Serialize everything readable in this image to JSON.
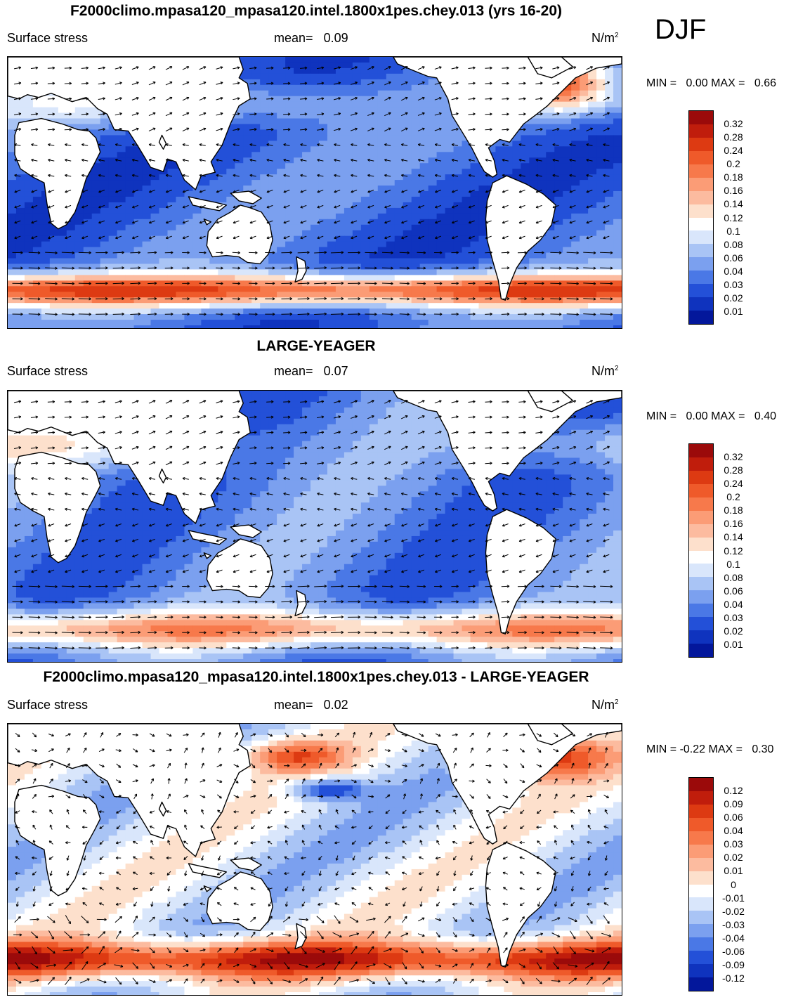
{
  "season": "DJF",
  "panels": [
    {
      "title": "F2000climo.mpasa120_mpasa120.intel.1800x1pes.chey.013 (yrs 16-20)",
      "variable": "Surface stress",
      "mean_label": "mean=",
      "mean_value": "0.09",
      "units_base": "N/m",
      "units_exp": "2",
      "min_label": "MIN =",
      "min_value": "0.00",
      "max_label": "MAX =",
      "max_value": "0.66",
      "colorbar": {
        "labels": [
          "0.32",
          "0.28",
          "0.24",
          "0.2",
          "0.18",
          "0.16",
          "0.14",
          "0.12",
          "0.1",
          "0.08",
          "0.06",
          "0.04",
          "0.03",
          "0.02",
          "0.01"
        ],
        "colors": [
          "#9b0a0a",
          "#c01d0c",
          "#dd3a12",
          "#ef5a2a",
          "#f7794b",
          "#fb9c76",
          "#fcbb9f",
          "#fde0cc",
          "#ffffff",
          "#d9e6fb",
          "#a9c4f5",
          "#7ba0ef",
          "#4a78e6",
          "#2350d8",
          "#0f33be",
          "#03179b"
        ]
      }
    },
    {
      "title": "LARGE-YEAGER",
      "variable": "Surface stress",
      "mean_label": "mean=",
      "mean_value": "0.07",
      "units_base": "N/m",
      "units_exp": "2",
      "min_label": "MIN =",
      "min_value": "0.00",
      "max_label": "MAX =",
      "max_value": "0.40",
      "colorbar": {
        "labels": [
          "0.32",
          "0.28",
          "0.24",
          "0.2",
          "0.18",
          "0.16",
          "0.14",
          "0.12",
          "0.1",
          "0.08",
          "0.06",
          "0.04",
          "0.03",
          "0.02",
          "0.01"
        ],
        "colors": [
          "#9b0a0a",
          "#c01d0c",
          "#dd3a12",
          "#ef5a2a",
          "#f7794b",
          "#fb9c76",
          "#fcbb9f",
          "#fde0cc",
          "#ffffff",
          "#d9e6fb",
          "#a9c4f5",
          "#7ba0ef",
          "#4a78e6",
          "#2350d8",
          "#0f33be",
          "#03179b"
        ]
      }
    },
    {
      "title": "F2000climo.mpasa120_mpasa120.intel.1800x1pes.chey.013 - LARGE-YEAGER",
      "variable": "Surface stress",
      "mean_label": "mean=",
      "mean_value": "0.02",
      "units_base": "N/m",
      "units_exp": "2",
      "min_label": "MIN =",
      "min_value": "-0.22",
      "max_label": "MAX =",
      "max_value": "0.30",
      "colorbar": {
        "labels": [
          "0.12",
          "0.09",
          "0.06",
          "0.04",
          "0.03",
          "0.02",
          "0.01",
          "0",
          "-0.01",
          "-0.02",
          "-0.03",
          "-0.04",
          "-0.06",
          "-0.09",
          "-0.12"
        ],
        "colors": [
          "#9b0a0a",
          "#c01d0c",
          "#dd3a12",
          "#ef5a2a",
          "#f7794b",
          "#fb9c76",
          "#fcbb9f",
          "#fde0cc",
          "#ffffff",
          "#d9e6fb",
          "#a9c4f5",
          "#7ba0ef",
          "#4a78e6",
          "#2350d8",
          "#0f33be",
          "#03179b"
        ]
      }
    }
  ]
}
